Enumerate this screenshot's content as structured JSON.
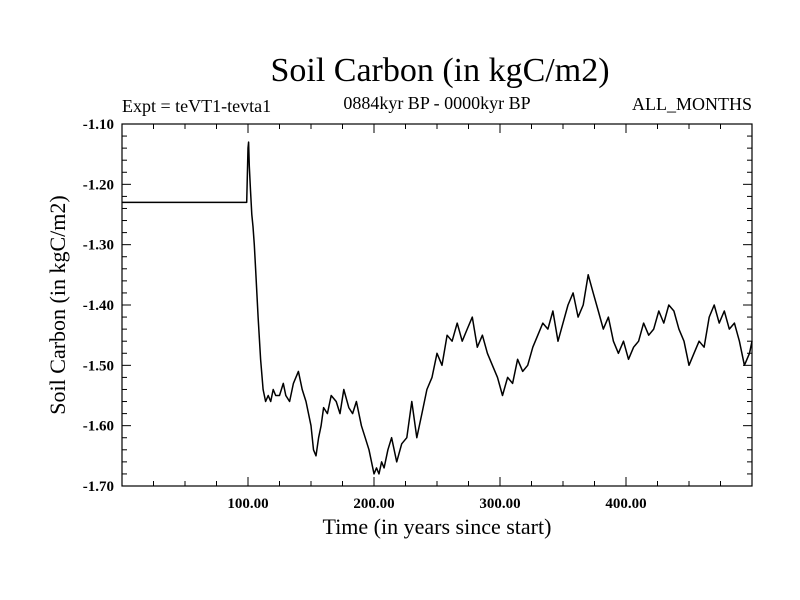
{
  "chart_data": {
    "type": "line",
    "title": "Soil Carbon (in kgC/m2)",
    "subtitle_left": "Expt = teVT1-tevta1",
    "subtitle_center": "0884kyr BP - 0000kyr BP",
    "subtitle_right": "ALL_MONTHS",
    "xlabel": "Time (in years since start)",
    "ylabel": "Soil Carbon (in kgC/m2)",
    "xlim": [
      0,
      500
    ],
    "ylim": [
      -1.7,
      -1.1
    ],
    "xticks": [
      100,
      200,
      300,
      400
    ],
    "xtick_labels": [
      "100.00",
      "200.00",
      "300.00",
      "400.00"
    ],
    "yticks": [
      -1.1,
      -1.2,
      -1.3,
      -1.4,
      -1.5,
      -1.6,
      -1.7
    ],
    "ytick_labels": [
      "-1.10",
      "-1.20",
      "-1.30",
      "-1.40",
      "-1.50",
      "-1.60",
      "-1.70"
    ],
    "series": [
      {
        "name": "Soil Carbon",
        "x": [
          0,
          99,
          100,
          100.5,
          101,
          102,
          103,
          104,
          105,
          106,
          108,
          110,
          112,
          114,
          116,
          118,
          120,
          122,
          125,
          128,
          130,
          133,
          136,
          140,
          143,
          146,
          150,
          152,
          154,
          156,
          158,
          160,
          163,
          166,
          170,
          173,
          176,
          180,
          183,
          186,
          190,
          193,
          196,
          200,
          202,
          204,
          206,
          208,
          211,
          214,
          218,
          222,
          226,
          230,
          234,
          238,
          242,
          246,
          250,
          254,
          258,
          262,
          266,
          270,
          274,
          278,
          282,
          286,
          290,
          294,
          298,
          302,
          306,
          310,
          314,
          318,
          322,
          326,
          330,
          334,
          338,
          342,
          346,
          350,
          354,
          358,
          362,
          366,
          370,
          374,
          378,
          382,
          386,
          390,
          394,
          398,
          402,
          406,
          410,
          414,
          418,
          422,
          426,
          430,
          434,
          438,
          442,
          446,
          450,
          454,
          458,
          462,
          466,
          470,
          474,
          478,
          482,
          486,
          490,
          494,
          498,
          500
        ],
        "y": [
          -1.23,
          -1.23,
          -1.14,
          -1.13,
          -1.17,
          -1.21,
          -1.25,
          -1.27,
          -1.3,
          -1.34,
          -1.42,
          -1.49,
          -1.54,
          -1.56,
          -1.55,
          -1.56,
          -1.54,
          -1.55,
          -1.55,
          -1.53,
          -1.55,
          -1.56,
          -1.53,
          -1.51,
          -1.54,
          -1.56,
          -1.6,
          -1.64,
          -1.65,
          -1.62,
          -1.6,
          -1.57,
          -1.58,
          -1.55,
          -1.56,
          -1.58,
          -1.54,
          -1.57,
          -1.58,
          -1.56,
          -1.6,
          -1.62,
          -1.64,
          -1.68,
          -1.67,
          -1.68,
          -1.66,
          -1.67,
          -1.64,
          -1.62,
          -1.66,
          -1.63,
          -1.62,
          -1.56,
          -1.62,
          -1.58,
          -1.54,
          -1.52,
          -1.48,
          -1.5,
          -1.45,
          -1.46,
          -1.43,
          -1.46,
          -1.44,
          -1.42,
          -1.47,
          -1.45,
          -1.48,
          -1.5,
          -1.52,
          -1.55,
          -1.52,
          -1.53,
          -1.49,
          -1.51,
          -1.5,
          -1.47,
          -1.45,
          -1.43,
          -1.44,
          -1.41,
          -1.46,
          -1.43,
          -1.4,
          -1.38,
          -1.42,
          -1.4,
          -1.35,
          -1.38,
          -1.41,
          -1.44,
          -1.42,
          -1.46,
          -1.48,
          -1.46,
          -1.49,
          -1.47,
          -1.46,
          -1.43,
          -1.45,
          -1.44,
          -1.41,
          -1.43,
          -1.4,
          -1.41,
          -1.44,
          -1.46,
          -1.5,
          -1.48,
          -1.46,
          -1.47,
          -1.42,
          -1.4,
          -1.43,
          -1.41,
          -1.44,
          -1.43,
          -1.46,
          -1.5,
          -1.48,
          -1.46
        ]
      }
    ]
  }
}
